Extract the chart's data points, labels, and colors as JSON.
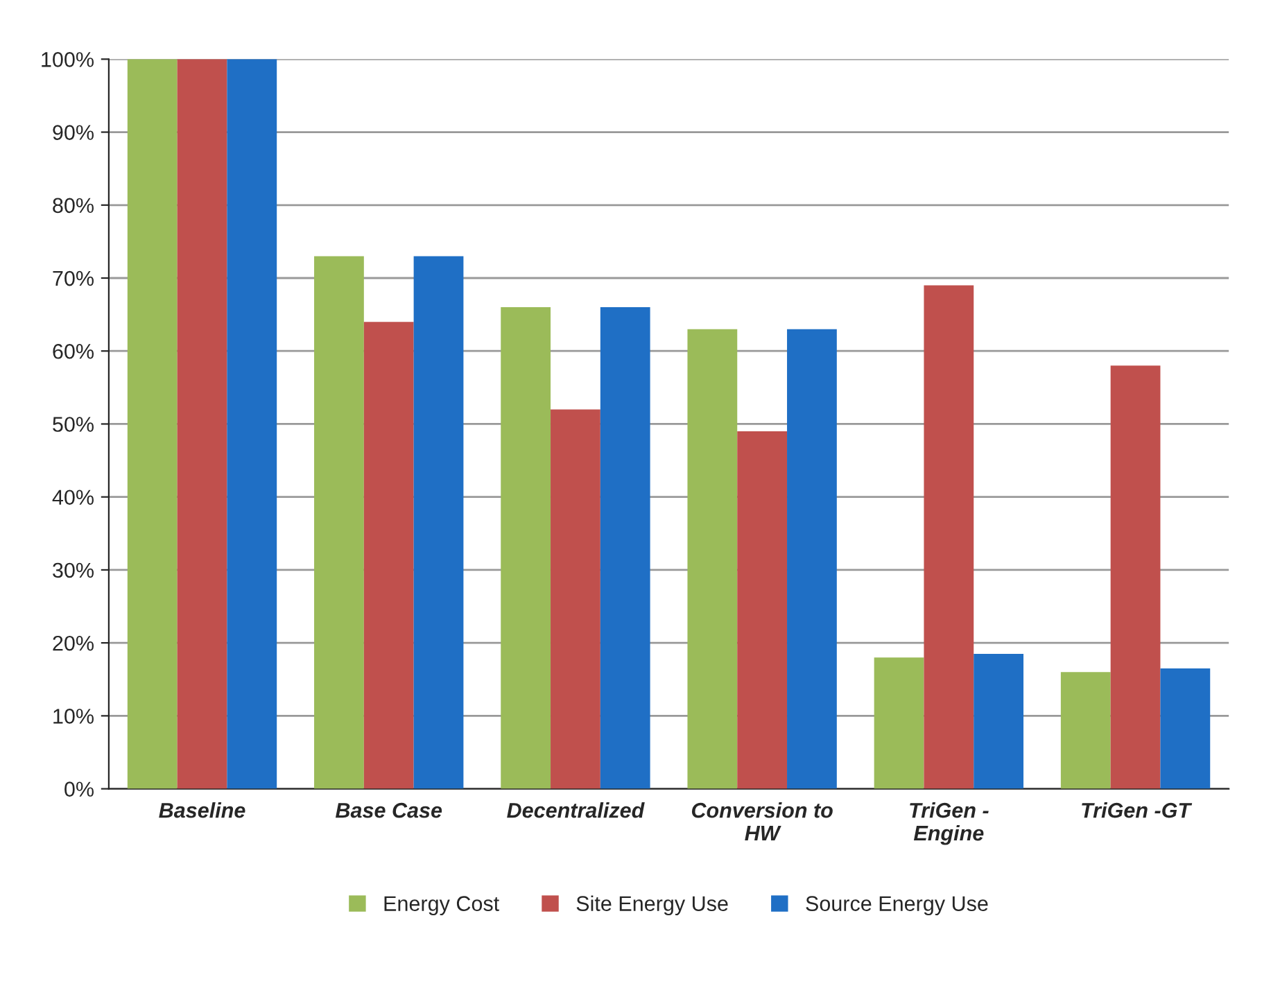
{
  "chart_data": {
    "type": "bar",
    "categories": [
      "Baseline",
      "Base Case",
      "Decentralized",
      "Conversion to\nHW",
      "TriGen -\nEngine",
      "TriGen -GT"
    ],
    "series": [
      {
        "name": "Energy Cost",
        "color": "#9bbb59",
        "values": [
          100,
          73,
          66,
          63,
          18,
          16
        ]
      },
      {
        "name": "Site Energy Use",
        "color": "#c0504d",
        "values": [
          100,
          64,
          52,
          49,
          69,
          58
        ]
      },
      {
        "name": "Source Energy Use",
        "color": "#1f6fc5",
        "values": [
          100,
          73,
          66,
          63,
          18.5,
          16.5
        ]
      }
    ],
    "ylim": [
      0,
      100
    ],
    "yticks": [
      {
        "value": 0,
        "label": "0%"
      },
      {
        "value": 10,
        "label": "10%"
      },
      {
        "value": 20,
        "label": "20%"
      },
      {
        "value": 30,
        "label": "30%"
      },
      {
        "value": 40,
        "label": "40%"
      },
      {
        "value": 50,
        "label": "50%"
      },
      {
        "value": 60,
        "label": "60%"
      },
      {
        "value": 70,
        "label": "70%"
      },
      {
        "value": 80,
        "label": "80%"
      },
      {
        "value": 90,
        "label": "90%"
      },
      {
        "value": 100,
        "label": "100%"
      }
    ],
    "grid": "y",
    "legend": "bottom"
  }
}
